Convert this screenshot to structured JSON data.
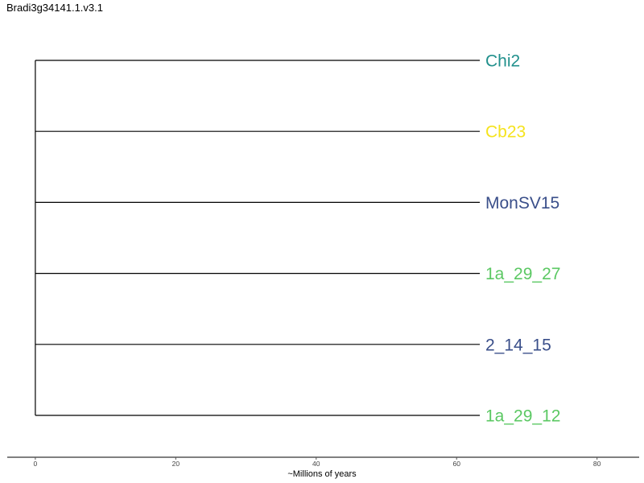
{
  "title": "Bradi3g34141.1.v3.1",
  "axis": {
    "label": "~Millions of years",
    "range": [
      -4,
      86
    ],
    "ticks": [
      0,
      20,
      40,
      60,
      80
    ]
  },
  "tree": {
    "root_age": 0,
    "tips": [
      {
        "name": "Chi2",
        "branch_length": 63.3,
        "color": "#21908C"
      },
      {
        "name": "Cb23",
        "branch_length": 63.3,
        "color": "#F5E31E"
      },
      {
        "name": "MonSV15",
        "branch_length": 63.3,
        "color": "#3A4F8A"
      },
      {
        "name": "1a_29_27",
        "branch_length": 63.3,
        "color": "#5BC863"
      },
      {
        "name": "2_14_15",
        "branch_length": 63.3,
        "color": "#3A4F8A"
      },
      {
        "name": "1a_29_12",
        "branch_length": 63.3,
        "color": "#5BC863"
      }
    ]
  }
}
